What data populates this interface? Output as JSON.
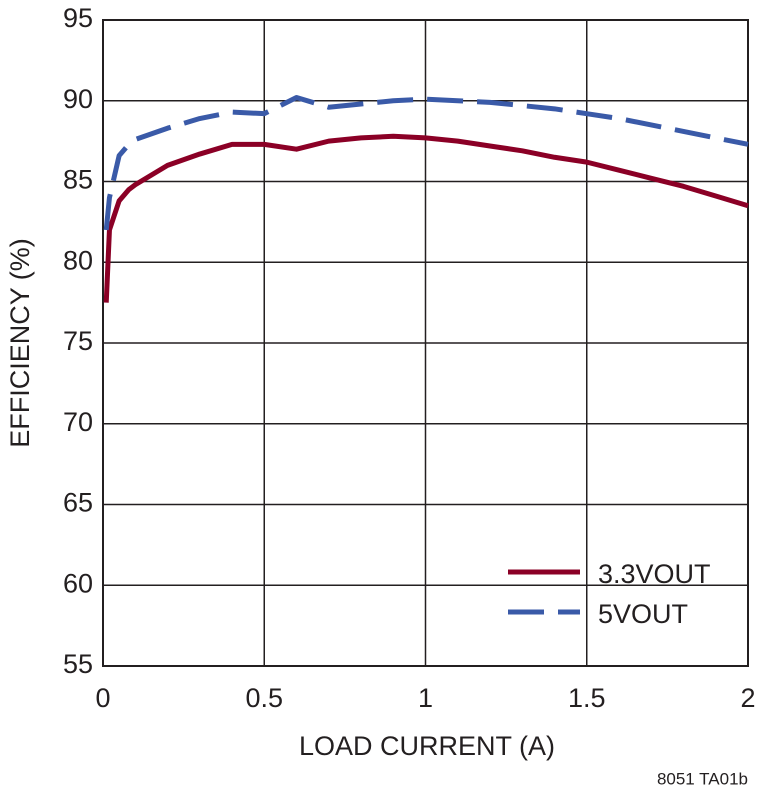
{
  "chart_data": {
    "type": "line",
    "x_label": "LOAD CURRENT (A)",
    "y_label": "EFFICIENCY (%)",
    "footnote": "8051 TA01b",
    "xlim": [
      0,
      2
    ],
    "xticks": [
      0,
      0.5,
      1,
      1.5,
      2
    ],
    "ylim": [
      55,
      95
    ],
    "yticks": [
      55,
      60,
      65,
      70,
      75,
      80,
      85,
      90,
      95
    ],
    "grid": true,
    "legend": "lower-right",
    "x": [
      0.01,
      0.02,
      0.05,
      0.08,
      0.1,
      0.2,
      0.3,
      0.4,
      0.5,
      0.6,
      0.7,
      0.8,
      0.9,
      1.0,
      1.1,
      1.2,
      1.3,
      1.4,
      1.5,
      1.6,
      1.7,
      1.8,
      1.9,
      2.0
    ],
    "series": [
      {
        "name": "3.3VOUT",
        "color": "#8b0026",
        "style": "solid",
        "values": [
          77.5,
          82,
          83.8,
          84.5,
          84.8,
          86,
          86.7,
          87.3,
          87.3,
          87,
          87.5,
          87.7,
          87.8,
          87.7,
          87.5,
          87.2,
          86.9,
          86.5,
          86.2,
          85.7,
          85.2,
          84.7,
          84.1,
          83.5
        ]
      },
      {
        "name": "5VOUT",
        "color": "#3a5aa8",
        "style": "dashed",
        "values": [
          82,
          84,
          86.6,
          87.3,
          87.6,
          88.3,
          88.9,
          89.3,
          89.2,
          90.2,
          89.6,
          89.8,
          90,
          90.1,
          90,
          89.9,
          89.7,
          89.5,
          89.2,
          88.9,
          88.5,
          88.1,
          87.7,
          87.3
        ]
      }
    ]
  }
}
